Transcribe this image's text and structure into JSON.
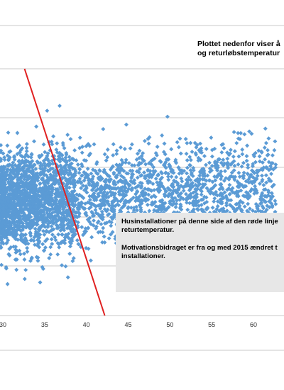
{
  "header": {
    "line1": "Plottet nedenfor viser å",
    "line2": "og returløbstemperatur"
  },
  "callout": {
    "line1": "Husinstallationer på denne side af den røde linje",
    "line2": "returtemperatur.",
    "line3": "Motivationsbidraget er fra og med 2015 ændret t",
    "line4": "installationer."
  },
  "chart_data": {
    "type": "scatter",
    "title": "",
    "xlabel": "",
    "ylabel": "",
    "x_ticks": [
      "30",
      "35",
      "40",
      "45",
      "50",
      "55",
      "60"
    ],
    "xlim": [
      29.7,
      63.7
    ],
    "grid": "horizontal",
    "colors": {
      "points": "#5b9bd5",
      "line": "#e02020",
      "grid": "#c8c8c8",
      "callout_bg": "#e7e7e7"
    },
    "reference_line": {
      "x": [
        32.6,
        42.2
      ],
      "y_rel": [
        0.0,
        1.0
      ],
      "color": "#e02020"
    },
    "notable_points": [
      {
        "x": 35.3,
        "y_rel": 0.17
      },
      {
        "x": 36.8,
        "y_rel": 0.15
      },
      {
        "x": 61.7,
        "y_rel": 0.33
      },
      {
        "x": 62.5,
        "y_rel": 0.33
      }
    ]
  }
}
